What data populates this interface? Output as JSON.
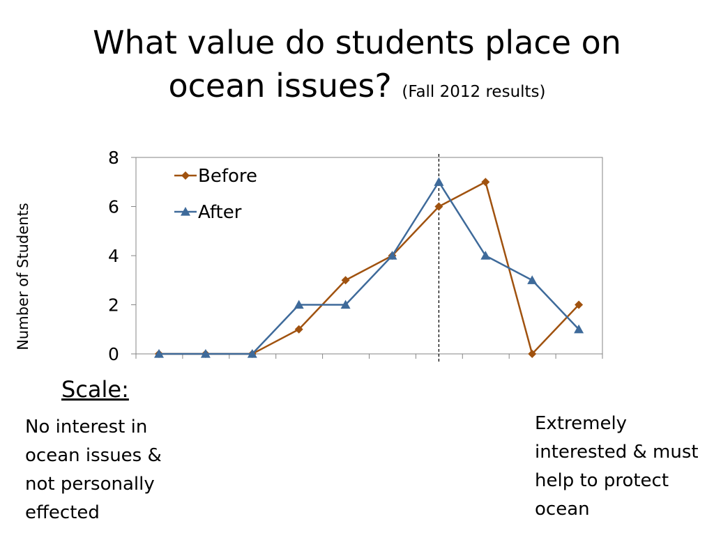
{
  "title": {
    "main_line1": "What value do students place on",
    "main_line2": "ocean issues?",
    "sub": "(Fall 2012 results)"
  },
  "scale": {
    "label": "Scale:",
    "low_description": "No interest in ocean issues & not personally effected",
    "high_description": "Extremely interested & must help to protect ocean"
  },
  "chart_data": {
    "type": "line",
    "x": [
      1,
      2,
      3,
      4,
      5,
      6,
      7,
      8,
      9,
      10
    ],
    "ylabel": "Number of Students",
    "xlabel": "",
    "ylim": [
      0,
      8
    ],
    "yticks": [
      0,
      2,
      4,
      6,
      8
    ],
    "xlim": [
      1,
      10
    ],
    "grid": false,
    "legend_position": "top-left",
    "reference_line_x": 7,
    "series": [
      {
        "name": "Before",
        "values": [
          0,
          0,
          0,
          1,
          3,
          4,
          6,
          7,
          0,
          2
        ],
        "color": "#A0520F",
        "marker": "diamond"
      },
      {
        "name": "After",
        "values": [
          0,
          0,
          0,
          2,
          2,
          4,
          7,
          4,
          3,
          1
        ],
        "color": "#3E6A9A",
        "marker": "triangle"
      }
    ]
  }
}
